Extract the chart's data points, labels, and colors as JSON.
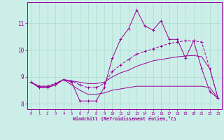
{
  "xlabel": "Windchill (Refroidissement éolien,°C)",
  "bg_color": "#cceee8",
  "grid_color": "#aaddcc",
  "line_color": "#990099",
  "x_hours": [
    0,
    1,
    2,
    3,
    4,
    5,
    6,
    7,
    8,
    9,
    10,
    11,
    12,
    13,
    14,
    15,
    16,
    17,
    18,
    19,
    20,
    21,
    22,
    23
  ],
  "series1": [
    8.8,
    8.6,
    8.6,
    8.7,
    8.9,
    8.8,
    8.1,
    8.1,
    8.1,
    8.6,
    9.7,
    10.4,
    10.8,
    11.5,
    10.9,
    10.75,
    11.1,
    10.4,
    10.4,
    9.7,
    10.35,
    9.3,
    8.45,
    8.2
  ],
  "series2": [
    8.8,
    8.65,
    8.65,
    8.75,
    8.9,
    8.85,
    8.7,
    8.6,
    8.6,
    8.75,
    9.2,
    9.45,
    9.65,
    9.85,
    9.95,
    10.05,
    10.15,
    10.25,
    10.3,
    10.35,
    10.35,
    10.3,
    9.3,
    8.2
  ],
  "series3": [
    8.8,
    8.65,
    8.65,
    8.75,
    8.9,
    8.85,
    8.8,
    8.75,
    8.75,
    8.8,
    9.0,
    9.15,
    9.25,
    9.4,
    9.5,
    9.6,
    9.65,
    9.7,
    9.75,
    9.78,
    9.8,
    9.75,
    9.3,
    8.2
  ],
  "series4": [
    8.8,
    8.6,
    8.6,
    8.7,
    8.9,
    8.7,
    8.5,
    8.35,
    8.35,
    8.4,
    8.5,
    8.55,
    8.6,
    8.65,
    8.65,
    8.65,
    8.65,
    8.65,
    8.65,
    8.65,
    8.65,
    8.65,
    8.6,
    8.2
  ],
  "ylim": [
    7.8,
    11.8
  ],
  "yticks": [
    8,
    9,
    10,
    11
  ],
  "xlim": [
    -0.5,
    23.5
  ]
}
